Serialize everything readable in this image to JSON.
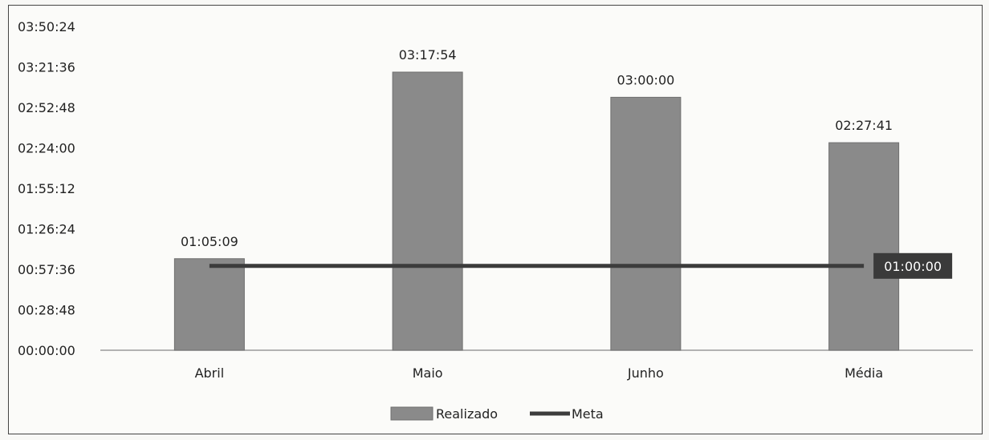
{
  "chart_data": {
    "type": "bar",
    "categories": [
      "Abril",
      "Maio",
      "Junho",
      "Média"
    ],
    "y_tick_labels": [
      "00:00:00",
      "00:28:48",
      "00:57:36",
      "01:26:24",
      "01:55:12",
      "02:24:00",
      "02:52:48",
      "03:21:36",
      "03:50:24"
    ],
    "y_tick_seconds": [
      0,
      1728,
      3456,
      5184,
      6912,
      8640,
      10368,
      12096,
      13824
    ],
    "ylim_seconds": [
      0,
      13824
    ],
    "series": [
      {
        "name": "Realizado",
        "kind": "bar",
        "values_seconds": [
          3909,
          11874,
          10800,
          8861
        ],
        "labels": [
          "01:05:09",
          "03:17:54",
          "03:00:00",
          "02:27:41"
        ],
        "color": "#8a8a8a"
      },
      {
        "name": "Meta",
        "kind": "line",
        "value_seconds": 3600,
        "label": "01:00:00",
        "color": "#3c3c3c"
      }
    ],
    "legend_position": "bottom",
    "grid": false
  }
}
